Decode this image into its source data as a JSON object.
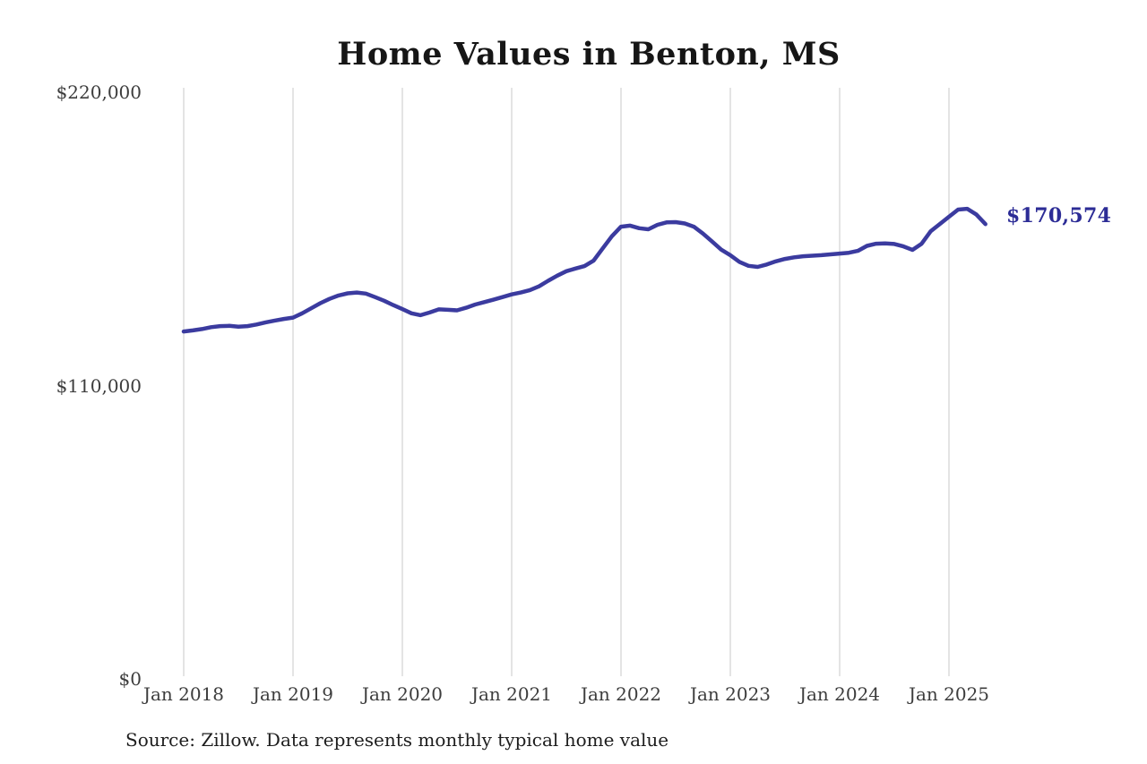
{
  "title": "Home Values in Benton, MS",
  "source_note": "Source: Zillow. Data represents monthly typical home value",
  "chart_data": {
    "type": "line",
    "title": "Home Values in Benton, MS",
    "series_name": "Monthly typical home value",
    "x_start": "Jan 2018",
    "x_end": "May 2025",
    "frequency": "monthly",
    "x_tick_labels": [
      "Jan 2018",
      "Jan 2019",
      "Jan 2020",
      "Jan 2021",
      "Jan 2022",
      "Jan 2023",
      "Jan 2024",
      "Jan 2025"
    ],
    "y_ticks": [
      {
        "label": "$0",
        "value": 0
      },
      {
        "label": "$110,000",
        "value": 110000
      },
      {
        "label": "$220,000",
        "value": 220000
      }
    ],
    "ylim": [
      0,
      220000
    ],
    "grid": "vertical-yearly",
    "legend": "none",
    "end_label": "$170,574",
    "final_value": 170574,
    "line_color": "#3b3b9f",
    "end_label_color": "#2c2c96",
    "grid_color": "#c9c9c9",
    "axis_text_color": "#3d3d3d",
    "title_color": "#161616",
    "background_color": "#ffffff",
    "values": [
      130300,
      130700,
      131200,
      131900,
      132300,
      132400,
      132100,
      132300,
      132900,
      133700,
      134400,
      135000,
      135500,
      137100,
      139000,
      140900,
      142500,
      143800,
      144600,
      144900,
      144500,
      143200,
      141800,
      140200,
      138700,
      137100,
      136400,
      137400,
      138600,
      138400,
      138200,
      139200,
      140400,
      141300,
      142200,
      143200,
      144200,
      144900,
      145800,
      147200,
      149300,
      151200,
      152900,
      153900,
      154800,
      156900,
      161500,
      166000,
      169600,
      170000,
      169000,
      168600,
      170300,
      171200,
      171300,
      170800,
      169600,
      167000,
      164000,
      161000,
      158900,
      156400,
      154900,
      154500,
      155400,
      156600,
      157500,
      158100,
      158500,
      158700,
      158900,
      159200,
      159500,
      159800,
      160500,
      162400,
      163200,
      163300,
      163100,
      162200,
      160900,
      163200,
      167900,
      170600,
      173300,
      176000,
      176300,
      174200,
      170574
    ]
  }
}
